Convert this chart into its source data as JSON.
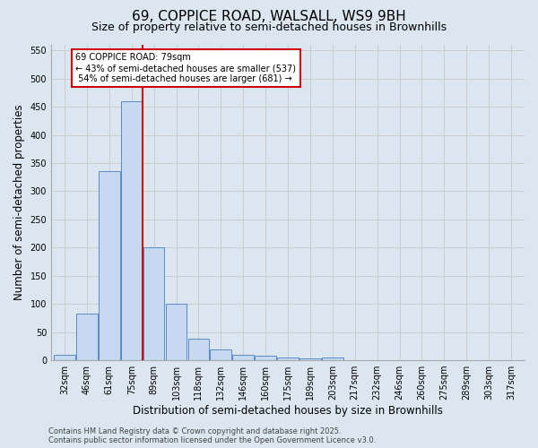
{
  "title": "69, COPPICE ROAD, WALSALL, WS9 9BH",
  "subtitle": "Size of property relative to semi-detached houses in Brownhills",
  "xlabel": "Distribution of semi-detached houses by size in Brownhills",
  "ylabel": "Number of semi-detached properties",
  "categories": [
    "32sqm",
    "46sqm",
    "61sqm",
    "75sqm",
    "89sqm",
    "103sqm",
    "118sqm",
    "132sqm",
    "146sqm",
    "160sqm",
    "175sqm",
    "189sqm",
    "203sqm",
    "217sqm",
    "232sqm",
    "246sqm",
    "260sqm",
    "275sqm",
    "289sqm",
    "303sqm",
    "317sqm"
  ],
  "values": [
    10,
    83,
    335,
    460,
    200,
    100,
    38,
    20,
    9,
    8,
    5,
    4,
    5,
    0,
    0,
    0,
    0,
    0,
    0,
    0,
    0
  ],
  "bar_color": "#c6d9f1",
  "bar_edge_color": "#5a8ac6",
  "property_label": "69 COPPICE ROAD: 79sqm",
  "pct_smaller": 43,
  "n_smaller": 537,
  "pct_larger": 54,
  "n_larger": 681,
  "red_line_x": 3.48,
  "annotation_box_color": "#cc0000",
  "grid_color": "#cccccc",
  "background_color": "#dce6f0",
  "ylim": [
    0,
    560
  ],
  "yticks": [
    0,
    50,
    100,
    150,
    200,
    250,
    300,
    350,
    400,
    450,
    500,
    550
  ],
  "footer_line1": "Contains HM Land Registry data © Crown copyright and database right 2025.",
  "footer_line2": "Contains public sector information licensed under the Open Government Licence v3.0.",
  "title_fontsize": 11,
  "subtitle_fontsize": 9,
  "axis_label_fontsize": 8.5,
  "tick_fontsize": 7,
  "footer_fontsize": 6
}
